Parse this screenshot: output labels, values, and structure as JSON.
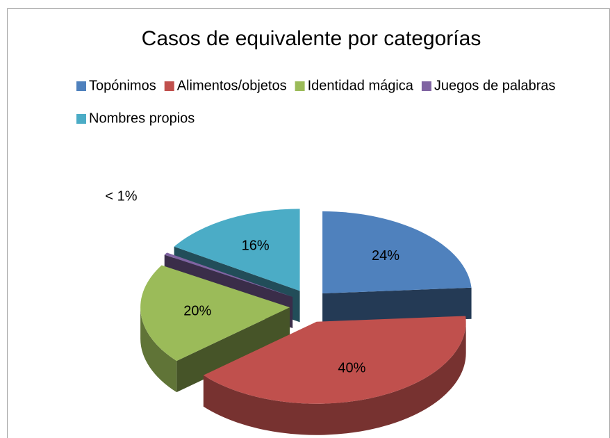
{
  "chart_data": {
    "type": "pie3d",
    "title": "Casos de equivalente por categorías",
    "categories": [
      "Topónimos",
      "Alimentos/objetos",
      "Identidad mágica",
      "Juegos de palabras",
      "Nombres propios"
    ],
    "values": [
      24,
      40,
      20,
      0.5,
      16
    ],
    "value_labels": [
      "24%",
      "40%",
      "20%",
      "< 1%",
      "16%"
    ],
    "colors": [
      "#4f81bd",
      "#c0504d",
      "#9bbb59",
      "#8064a2",
      "#4bacc6"
    ],
    "legend": "top"
  }
}
